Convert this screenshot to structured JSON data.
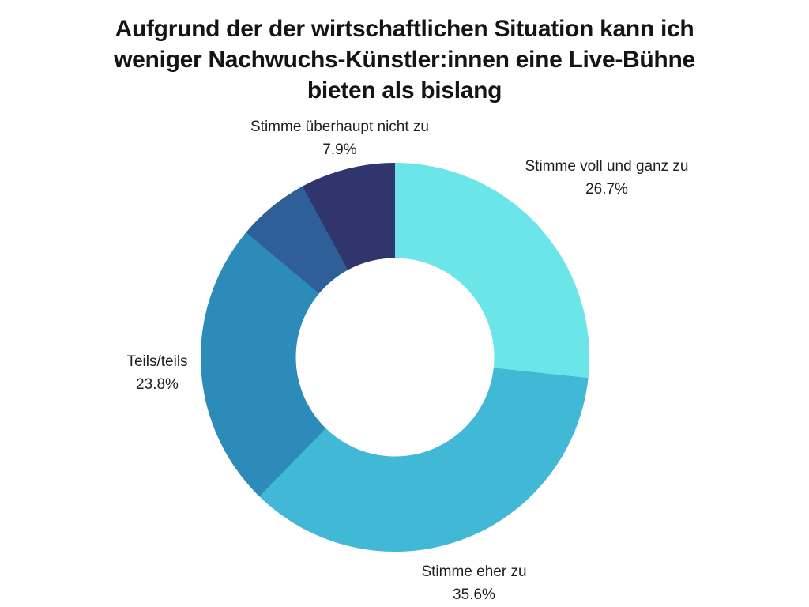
{
  "page": {
    "background": "#ffffff",
    "title_lines": [
      "Aufgrund der der wirtschaftlichen Situation kann ich",
      "weniger Nachwuchs-Künstler:innen eine Live-Bühne",
      "bieten als bislang"
    ]
  },
  "chart_data": {
    "type": "pie",
    "subtype": "donut",
    "title": "Aufgrund der der wirtschaftlichen Situation kann ich weniger Nachwuchs-Künstler:innen eine Live-Bühne bieten als bislang",
    "start_angle_deg": 0,
    "direction": "clockwise",
    "hole_ratio": 0.51,
    "background": "#ffffff",
    "segments": [
      {
        "label": "Stimme voll und ganz zu",
        "value": 26.7,
        "percent_label": "26.7%",
        "color": "#6ce5e8"
      },
      {
        "label": "Stimme eher zu",
        "value": 35.6,
        "percent_label": "35.6%",
        "color": "#41b8d5"
      },
      {
        "label": "Teils/teils",
        "value": 23.8,
        "percent_label": "23.8%",
        "color": "#2d8bba"
      },
      {
        "label": "",
        "value": 6.0,
        "percent_label": "",
        "color": "#2f5f98"
      },
      {
        "label": "Stimme überhaupt nicht zu",
        "value": 7.9,
        "percent_label": "7.9%",
        "color": "#31356e"
      }
    ]
  }
}
